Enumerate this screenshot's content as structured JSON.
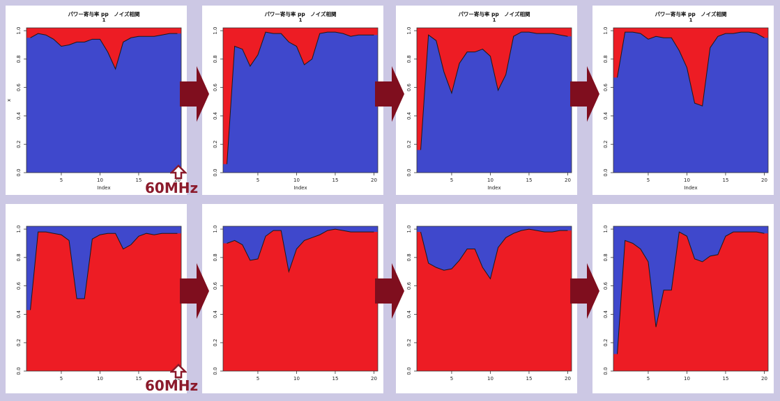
{
  "colors": {
    "fill_top_row_under": "#3f48cc",
    "fill_top_row_over": "#ed1c24",
    "fill_bottom_row_under": "#ed1c24",
    "fill_bottom_row_over": "#3f48cc",
    "arrow": "#7f0e1e",
    "background": "#ccc8e4"
  },
  "annotations": {
    "freq_label_top": "60MHz",
    "freq_label_bottom": "60MHz"
  },
  "chart_data": [
    {
      "type": "area",
      "title": "パワー寄与率 pp　ノイズ相関",
      "subtitle": "1",
      "xlabel": "Index",
      "ylabel": "x",
      "x": [
        1,
        2,
        3,
        4,
        5,
        6,
        7,
        8,
        9,
        10,
        11,
        12,
        13,
        14,
        15,
        16,
        17,
        18,
        19,
        20
      ],
      "values": [
        0.95,
        0.98,
        0.97,
        0.94,
        0.89,
        0.9,
        0.92,
        0.92,
        0.94,
        0.94,
        0.85,
        0.73,
        0.92,
        0.95,
        0.96,
        0.96,
        0.96,
        0.97,
        0.98,
        0.98
      ],
      "xlim": [
        0.5,
        20.5
      ],
      "ylim": [
        0,
        1.02
      ],
      "x_ticks": [
        5,
        10,
        15,
        20
      ],
      "y_ticks": [
        0.0,
        0.2,
        0.4,
        0.6,
        0.8,
        1.0
      ],
      "y_tick_labels": [
        "0.0",
        "0.2",
        "0.4",
        "0.6",
        "0.8",
        "1.0"
      ],
      "x_tick_labels": [
        "5",
        "10",
        "15",
        "20"
      ]
    },
    {
      "type": "area",
      "title": "パワー寄与率 pp　ノイズ相関",
      "subtitle": "1",
      "xlabel": "Index",
      "ylabel": "",
      "x": [
        1,
        2,
        3,
        4,
        5,
        6,
        7,
        8,
        9,
        10,
        11,
        12,
        13,
        14,
        15,
        16,
        17,
        18,
        19,
        20
      ],
      "values": [
        0.06,
        0.89,
        0.87,
        0.75,
        0.83,
        0.99,
        0.98,
        0.98,
        0.92,
        0.89,
        0.76,
        0.8,
        0.98,
        0.99,
        0.99,
        0.98,
        0.96,
        0.97,
        0.97,
        0.97
      ],
      "xlim": [
        0.5,
        20.5
      ],
      "ylim": [
        0,
        1.02
      ],
      "x_ticks": [
        5,
        10,
        15,
        20
      ],
      "y_ticks": [
        0.0,
        0.2,
        0.4,
        0.6,
        0.8,
        1.0
      ],
      "y_tick_labels": [
        "0.0",
        "0.2",
        "0.4",
        "0.6",
        "0.8",
        "1.0"
      ],
      "x_tick_labels": [
        "5",
        "10",
        "15",
        "20"
      ]
    },
    {
      "type": "area",
      "title": "パワー寄与率 pp　ノイズ相関",
      "subtitle": "1",
      "xlabel": "Index",
      "ylabel": "",
      "x": [
        1,
        2,
        3,
        4,
        5,
        6,
        7,
        8,
        9,
        10,
        11,
        12,
        13,
        14,
        15,
        16,
        17,
        18,
        19,
        20
      ],
      "values": [
        0.16,
        0.97,
        0.93,
        0.71,
        0.56,
        0.77,
        0.85,
        0.85,
        0.87,
        0.82,
        0.58,
        0.69,
        0.96,
        0.99,
        0.99,
        0.98,
        0.98,
        0.98,
        0.97,
        0.96
      ],
      "xlim": [
        0.5,
        20.5
      ],
      "ylim": [
        0,
        1.02
      ],
      "x_ticks": [
        5,
        10,
        15,
        20
      ],
      "y_ticks": [
        0.0,
        0.2,
        0.4,
        0.6,
        0.8,
        1.0
      ],
      "y_tick_labels": [
        "0.0",
        "0.2",
        "0.4",
        "0.6",
        "0.8",
        "1.0"
      ],
      "x_tick_labels": [
        "5",
        "10",
        "15",
        "20"
      ]
    },
    {
      "type": "area",
      "title": "パワー寄与率 pp　ノイズ相関",
      "subtitle": "1",
      "xlabel": "Index",
      "ylabel": "",
      "x": [
        1,
        2,
        3,
        4,
        5,
        6,
        7,
        8,
        9,
        10,
        11,
        12,
        13,
        14,
        15,
        16,
        17,
        18,
        19,
        20
      ],
      "values": [
        0.67,
        0.99,
        0.99,
        0.98,
        0.94,
        0.96,
        0.95,
        0.95,
        0.86,
        0.74,
        0.49,
        0.47,
        0.88,
        0.96,
        0.98,
        0.98,
        0.99,
        0.99,
        0.98,
        0.95
      ],
      "xlim": [
        0.5,
        20.5
      ],
      "ylim": [
        0,
        1.02
      ],
      "x_ticks": [
        5,
        10,
        15,
        20
      ],
      "y_ticks": [
        0.0,
        0.2,
        0.4,
        0.6,
        0.8,
        1.0
      ],
      "y_tick_labels": [
        "0.0",
        "0.2",
        "0.4",
        "0.6",
        "0.8",
        "1.0"
      ],
      "x_tick_labels": [
        "5",
        "10",
        "15",
        "20"
      ]
    },
    {
      "type": "area",
      "title": "",
      "subtitle": "",
      "xlabel": "",
      "ylabel": "",
      "x": [
        1,
        2,
        3,
        4,
        5,
        6,
        7,
        8,
        9,
        10,
        11,
        12,
        13,
        14,
        15,
        16,
        17,
        18,
        19,
        20
      ],
      "values": [
        0.43,
        0.98,
        0.98,
        0.97,
        0.96,
        0.92,
        0.51,
        0.51,
        0.93,
        0.96,
        0.97,
        0.97,
        0.86,
        0.89,
        0.95,
        0.97,
        0.96,
        0.97,
        0.97,
        0.97
      ],
      "xlim": [
        0.5,
        20.5
      ],
      "ylim": [
        0,
        1.02
      ],
      "x_ticks": [
        5,
        10,
        15,
        20
      ],
      "y_ticks": [
        0.0,
        0.2,
        0.4,
        0.6,
        0.8,
        1.0
      ],
      "y_tick_labels": [
        "0.0",
        "0.2",
        "0.4",
        "0.6",
        "0.8",
        "1.0"
      ],
      "x_tick_labels": [
        "5",
        "10",
        "15",
        "20"
      ]
    },
    {
      "type": "area",
      "title": "",
      "subtitle": "",
      "xlabel": "",
      "ylabel": "",
      "x": [
        1,
        2,
        3,
        4,
        5,
        6,
        7,
        8,
        9,
        10,
        11,
        12,
        13,
        14,
        15,
        16,
        17,
        18,
        19,
        20
      ],
      "values": [
        0.9,
        0.92,
        0.89,
        0.78,
        0.79,
        0.95,
        0.99,
        0.99,
        0.7,
        0.86,
        0.92,
        0.94,
        0.96,
        0.99,
        1.0,
        0.99,
        0.98,
        0.98,
        0.98,
        0.98
      ],
      "xlim": [
        0.5,
        20.5
      ],
      "ylim": [
        0,
        1.02
      ],
      "x_ticks": [
        5,
        10,
        15,
        20
      ],
      "y_ticks": [
        0.0,
        0.2,
        0.4,
        0.6,
        0.8,
        1.0
      ],
      "y_tick_labels": [
        "0.0",
        "0.2",
        "0.4",
        "0.6",
        "0.8",
        "1.0"
      ],
      "x_tick_labels": [
        "5",
        "10",
        "15",
        "20"
      ]
    },
    {
      "type": "area",
      "title": "",
      "subtitle": "",
      "xlabel": "",
      "ylabel": "",
      "x": [
        1,
        2,
        3,
        4,
        5,
        6,
        7,
        8,
        9,
        10,
        11,
        12,
        13,
        14,
        15,
        16,
        17,
        18,
        19,
        20
      ],
      "values": [
        0.98,
        0.76,
        0.73,
        0.71,
        0.72,
        0.78,
        0.86,
        0.86,
        0.73,
        0.65,
        0.87,
        0.94,
        0.97,
        0.99,
        1.0,
        0.99,
        0.98,
        0.98,
        0.99,
        0.99
      ],
      "xlim": [
        0.5,
        20.5
      ],
      "ylim": [
        0,
        1.02
      ],
      "x_ticks": [
        5,
        10,
        15,
        20
      ],
      "y_ticks": [
        0.0,
        0.2,
        0.4,
        0.6,
        0.8,
        1.0
      ],
      "y_tick_labels": [
        "0.0",
        "0.2",
        "0.4",
        "0.6",
        "0.8",
        "1.0"
      ],
      "x_tick_labels": [
        "5",
        "10",
        "15",
        "20"
      ]
    },
    {
      "type": "area",
      "title": "",
      "subtitle": "",
      "xlabel": "",
      "ylabel": "",
      "x": [
        1,
        2,
        3,
        4,
        5,
        6,
        7,
        8,
        9,
        10,
        11,
        12,
        13,
        14,
        15,
        16,
        17,
        18,
        19,
        20
      ],
      "values": [
        0.12,
        0.92,
        0.9,
        0.86,
        0.77,
        0.31,
        0.57,
        0.57,
        0.98,
        0.95,
        0.79,
        0.77,
        0.81,
        0.82,
        0.95,
        0.98,
        0.98,
        0.98,
        0.98,
        0.97
      ],
      "xlim": [
        0.5,
        20.5
      ],
      "ylim": [
        0,
        1.02
      ],
      "x_ticks": [
        5,
        10,
        15,
        20
      ],
      "y_ticks": [
        0.0,
        0.2,
        0.4,
        0.6,
        0.8,
        1.0
      ],
      "y_tick_labels": [
        "0.0",
        "0.2",
        "0.4",
        "0.6",
        "0.8",
        "1.0"
      ],
      "x_tick_labels": [
        "5",
        "10",
        "15",
        "20"
      ]
    }
  ]
}
